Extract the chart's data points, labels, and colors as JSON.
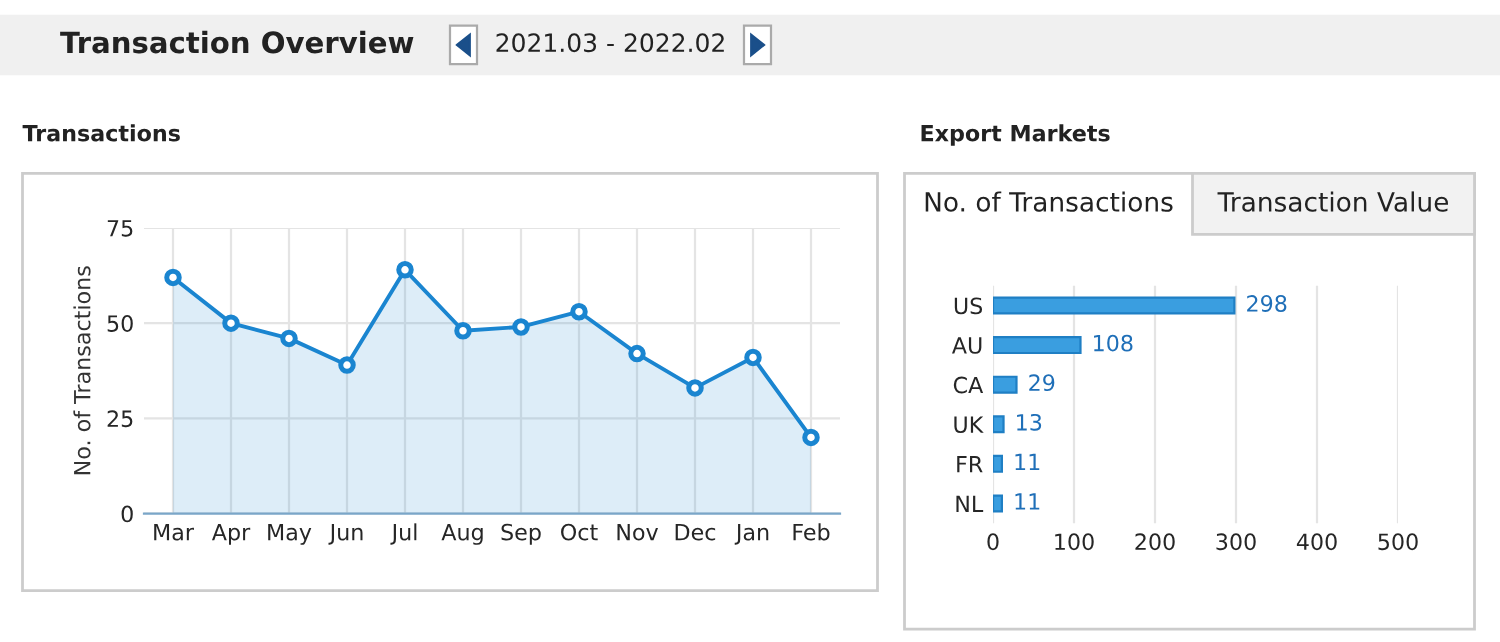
{
  "chart_data": [
    {
      "type": "area",
      "title": "Transactions",
      "ylabel": "No. of Transactions",
      "annotations": [
        "Transaction Overview",
        "2021.03 - 2022.02"
      ],
      "categories": [
        "Mar",
        "Apr",
        "May",
        "Jun",
        "Jul",
        "Aug",
        "Sep",
        "Oct",
        "Nov",
        "Dec",
        "Jan",
        "Feb"
      ],
      "series": [
        {
          "color": "#1a85d0",
          "values": [
            62,
            50,
            46,
            39,
            64,
            48,
            49,
            53,
            42,
            33,
            41,
            20
          ]
        }
      ],
      "ylim": [
        0,
        75
      ],
      "yticks": [
        0,
        25,
        50,
        75
      ],
      "grid": true,
      "marker": "circle",
      "line_style": "solid",
      "legend": false
    },
    {
      "type": "bar",
      "orientation": "horizontal",
      "title": "Export Markets",
      "annotations": [
        "No. of Transactions",
        "Transaction Value"
      ],
      "categories": [
        "US",
        "AU",
        "CA",
        "UK",
        "FR",
        "NL"
      ],
      "series": [
        {
          "color": "#3a9ee0",
          "values": [
            298,
            108,
            29,
            13,
            11,
            11
          ]
        }
      ],
      "xlim": [
        0,
        500
      ],
      "xticks": [
        0,
        100,
        200,
        300,
        400,
        500
      ],
      "grid": "x",
      "data_labels": true,
      "legend": false
    }
  ]
}
